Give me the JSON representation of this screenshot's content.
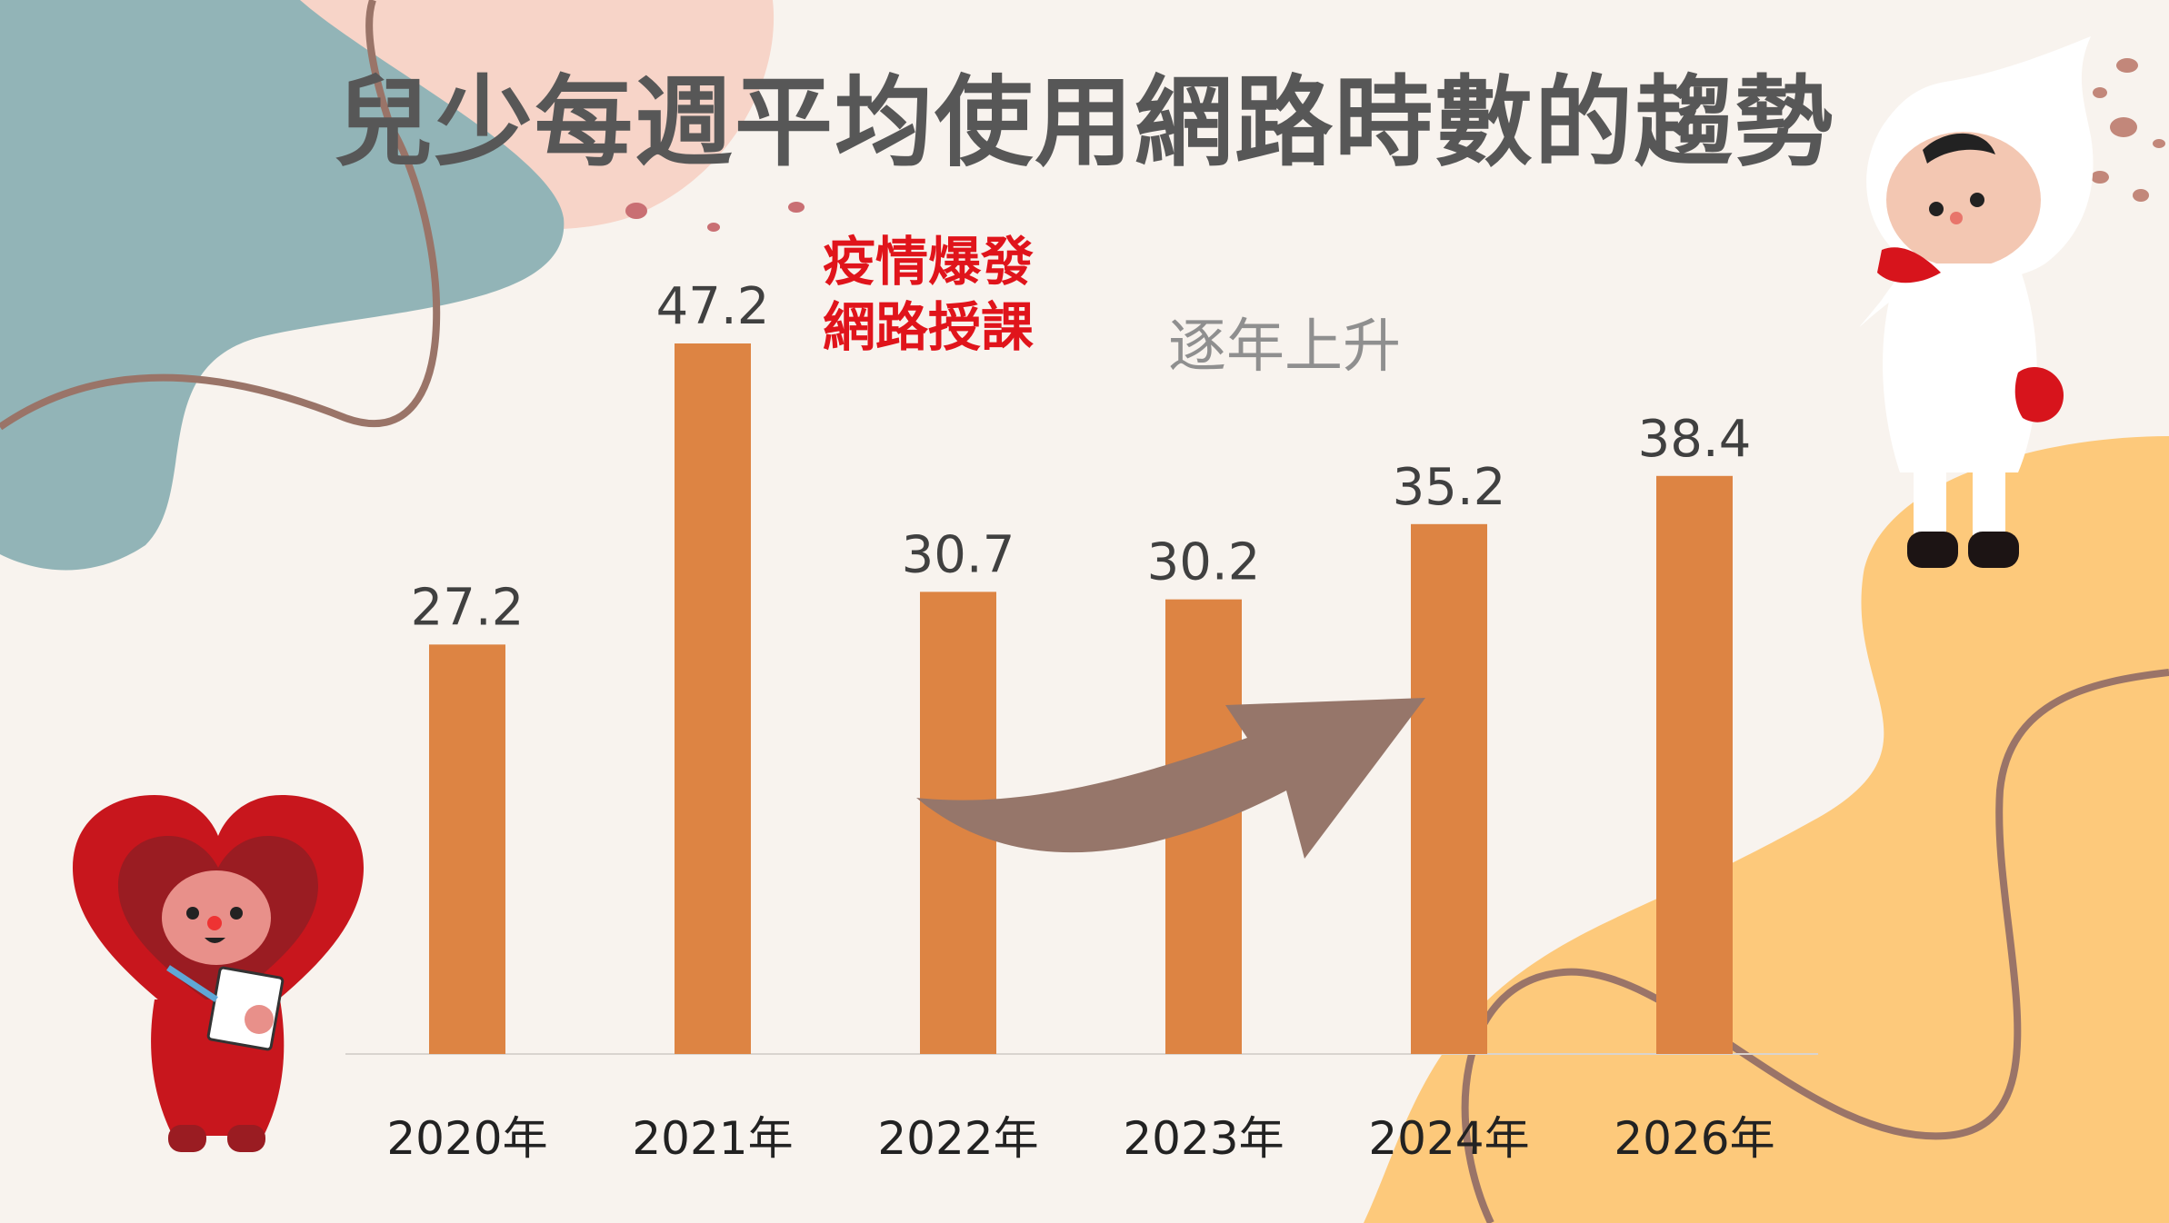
{
  "title": "兒少每週平均使用網路時數的趨勢",
  "annotations": {
    "pandemic_line1": "疫情爆發",
    "pandemic_line2": "網路授課",
    "trend": "逐年上升"
  },
  "colors": {
    "bar": "#dd8443",
    "background": "#f8f3ee",
    "arrow": "#96766a",
    "annotation_red": "#e0141b",
    "title": "#575757"
  },
  "chart_data": {
    "type": "bar",
    "title": "兒少每週平均使用網路時數的趨勢",
    "categories": [
      "2020年",
      "2021年",
      "2022年",
      "2023年",
      "2024年",
      "2026年"
    ],
    "values": [
      27.2,
      47.2,
      30.7,
      30.2,
      35.2,
      38.4
    ],
    "data_labels": [
      "27.2",
      "47.2",
      "30.7",
      "30.2",
      "35.2",
      "38.4"
    ],
    "xlabel": "",
    "ylabel": "",
    "ylim": [
      0,
      47.2
    ],
    "grid": false,
    "legend": "none"
  }
}
